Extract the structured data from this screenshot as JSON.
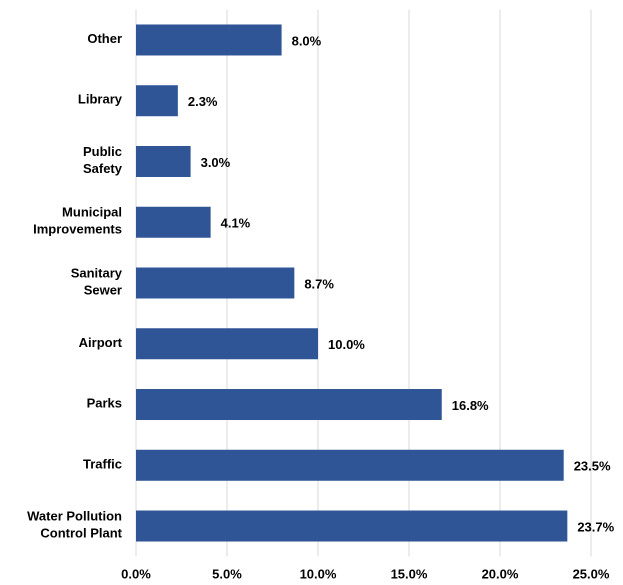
{
  "chart_data": {
    "type": "hbar",
    "categories": [
      "Other",
      "Library",
      "Public\nSafety",
      "Municipal\nImprovements",
      "Sanitary\nSewer",
      "Airport",
      "Parks",
      "Traffic",
      "Water Pollution\nControl Plant"
    ],
    "values": [
      8.0,
      2.3,
      3.0,
      4.1,
      8.7,
      10.0,
      16.8,
      23.5,
      23.7
    ],
    "value_labels": [
      "8.0%",
      "2.3%",
      "3.0%",
      "4.1%",
      "8.7%",
      "10.0%",
      "16.8%",
      "23.5%",
      "23.7%"
    ],
    "color": "#2f5597",
    "xlim": [
      0,
      25
    ],
    "xticks": [
      {
        "value": 0,
        "label": "0.0%"
      },
      {
        "value": 5,
        "label": "5.0%"
      },
      {
        "value": 10,
        "label": "10.0%"
      },
      {
        "value": 15,
        "label": "15.0%"
      },
      {
        "value": 20,
        "label": "20.0%"
      },
      {
        "value": 25,
        "label": "25.0%"
      }
    ],
    "grid": true
  }
}
